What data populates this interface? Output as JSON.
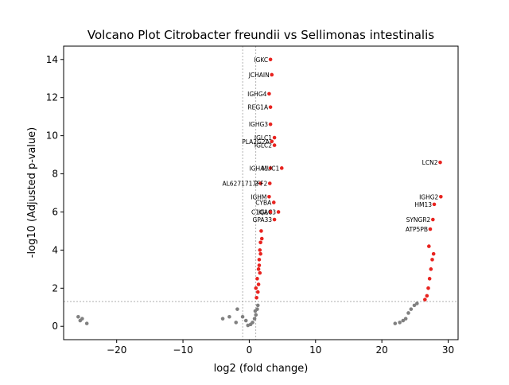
{
  "chart_data": {
    "type": "scatter",
    "title": "Volcano Plot Citrobacter freundii vs Sellimonas intestinalis",
    "xlabel": "log2 (fold change)",
    "ylabel": "-log10 (Adjusted p-value)",
    "xlim": [
      -28,
      31.5
    ],
    "ylim": [
      -0.7,
      14.7
    ],
    "xticks": [
      -20,
      -10,
      0,
      10,
      20,
      30
    ],
    "yticks": [
      0,
      2,
      4,
      6,
      8,
      10,
      12,
      14
    ],
    "grid": false,
    "reference_lines": {
      "vertical": [
        -1,
        1
      ],
      "horizontal": [
        1.3
      ]
    },
    "colors": {
      "significant": "#e8231f",
      "not_significant": "#808080",
      "reference_line": "#808080"
    },
    "series": [
      {
        "points": [
          [
            -1.0,
            0.5
          ],
          [
            -0.5,
            0.3
          ],
          [
            0.2,
            0.1
          ],
          [
            0.5,
            0.2
          ],
          [
            0.8,
            0.4
          ],
          [
            1.0,
            0.6
          ],
          [
            1.2,
            0.9
          ],
          [
            -2.0,
            0.2
          ],
          [
            -3.0,
            0.5
          ],
          [
            -4.0,
            0.4
          ],
          [
            -0.2,
            0.05
          ],
          [
            0.9,
            0.8
          ],
          [
            1.3,
            1.1
          ],
          [
            -1.8,
            0.9
          ],
          [
            -25.8,
            0.5
          ],
          [
            -25.5,
            0.3
          ],
          [
            -25.2,
            0.4
          ],
          [
            -24.5,
            0.15
          ],
          [
            22.0,
            0.15
          ],
          [
            22.7,
            0.2
          ],
          [
            23.2,
            0.3
          ],
          [
            23.6,
            0.4
          ],
          [
            24.0,
            0.7
          ],
          [
            24.4,
            0.9
          ],
          [
            24.9,
            1.1
          ],
          [
            25.3,
            1.2
          ]
        ]
      },
      {
        "points": [
          [
            1.0,
            2.0
          ],
          [
            1.2,
            2.5
          ],
          [
            1.4,
            3.0
          ],
          [
            1.5,
            3.5
          ],
          [
            1.6,
            4.0
          ],
          [
            1.7,
            4.4
          ],
          [
            1.8,
            5.0
          ],
          [
            1.3,
            1.8
          ],
          [
            1.1,
            1.5
          ],
          [
            1.4,
            2.2
          ],
          [
            1.6,
            2.8
          ],
          [
            1.5,
            3.2
          ],
          [
            1.7,
            3.8
          ],
          [
            1.9,
            4.6
          ],
          [
            27.0,
            2.0
          ],
          [
            27.2,
            2.5
          ],
          [
            27.4,
            3.0
          ],
          [
            27.6,
            3.5
          ],
          [
            27.8,
            3.8
          ],
          [
            26.8,
            1.6
          ],
          [
            27.1,
            4.2
          ],
          [
            26.5,
            1.4
          ]
        ]
      }
    ],
    "labeled_points": [
      {
        "label": "IGKC",
        "x": 3.2,
        "y": 14.0
      },
      {
        "label": "JCHAIN",
        "x": 3.4,
        "y": 13.2
      },
      {
        "label": "IGHG4",
        "x": 3.0,
        "y": 12.2
      },
      {
        "label": "REG1A",
        "x": 3.2,
        "y": 11.5
      },
      {
        "label": "IGHG3",
        "x": 3.2,
        "y": 10.6
      },
      {
        "label": "IGLC1",
        "x": 3.8,
        "y": 9.9
      },
      {
        "label": "PLA2G2A",
        "x": 3.4,
        "y": 9.7
      },
      {
        "label": "IGLC2",
        "x": 3.8,
        "y": 9.5
      },
      {
        "label": "IGHA1",
        "x": 3.2,
        "y": 8.3
      },
      {
        "label": "MUC1",
        "x": 4.9,
        "y": 8.3
      },
      {
        "label": "AL627171.2",
        "x": 1.7,
        "y": 7.5
      },
      {
        "label": "TFF2",
        "x": 3.1,
        "y": 7.5
      },
      {
        "label": "IGHM",
        "x": 3.0,
        "y": 6.8
      },
      {
        "label": "CYBA",
        "x": 3.7,
        "y": 6.5
      },
      {
        "label": "IGLC3",
        "x": 4.4,
        "y": 6.0
      },
      {
        "label": "C1QA",
        "x": 3.2,
        "y": 6.0
      },
      {
        "label": "GPA33",
        "x": 3.8,
        "y": 5.6
      },
      {
        "label": "LCN2",
        "x": 28.8,
        "y": 8.6
      },
      {
        "label": "IGHG2",
        "x": 28.9,
        "y": 6.8
      },
      {
        "label": "HM13",
        "x": 27.9,
        "y": 6.4
      },
      {
        "label": "SYNGR2",
        "x": 27.7,
        "y": 5.6
      },
      {
        "label": "ATP5PB",
        "x": 27.3,
        "y": 5.1
      }
    ]
  }
}
